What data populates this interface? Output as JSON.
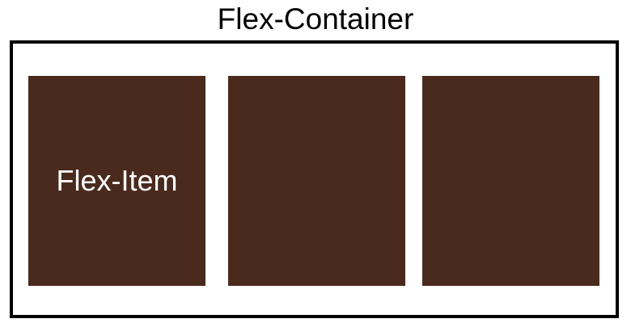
{
  "diagram": {
    "title": "Flex-Container",
    "items": [
      {
        "label": "Flex-Item"
      },
      {
        "label": ""
      },
      {
        "label": ""
      }
    ]
  },
  "colors": {
    "item_fill": "#4a2a1c",
    "item_text": "#ffffff",
    "container_border": "#000000",
    "background": "#ffffff"
  }
}
